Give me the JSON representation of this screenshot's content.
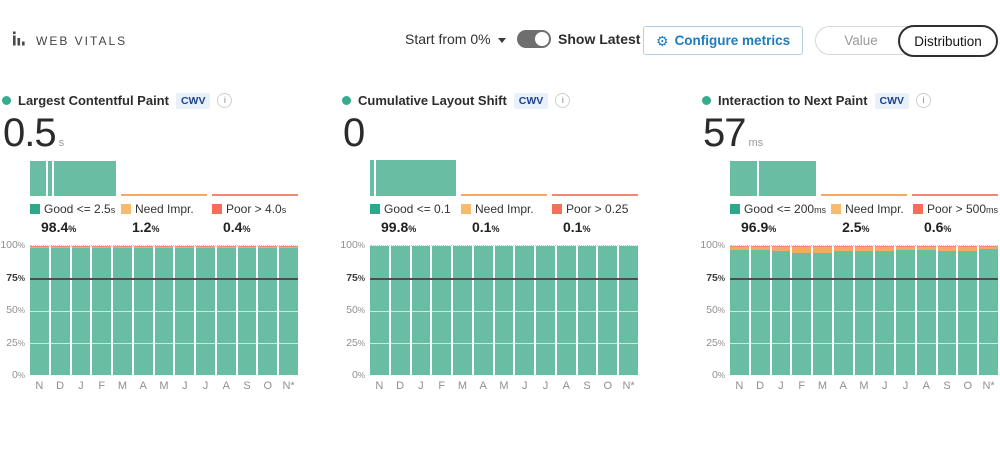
{
  "percent_sign": "%",
  "header": {
    "brand": "WEB VITALS",
    "start_from_label": "Start from 0%",
    "show_latest_label": "Show Latest",
    "configure_label": "Configure metrics",
    "view_toggle": {
      "options": [
        "Value",
        "Distribution"
      ],
      "selected": "Distribution"
    }
  },
  "colors": {
    "good": "#68bda2",
    "good_legend": "#2ea78b",
    "need": "#f4aa67",
    "need_legend": "#f6bb6f",
    "poor": "#ee8a72",
    "poor_legend": "#f2705a",
    "accent_blue": "#1c7cc0",
    "badge_bg": "#e8f1fa",
    "badge_text": "#20418e",
    "threshold_line": "#4d4d4d",
    "title_dot": "#35ab8f"
  },
  "months": [
    "N",
    "D",
    "J",
    "F",
    "M",
    "A",
    "M",
    "J",
    "J",
    "A",
    "S",
    "O",
    "N*"
  ],
  "y_ticks": [
    100,
    75,
    50,
    25,
    0
  ],
  "cards": [
    {
      "title": "Largest Contentful Paint",
      "badge": "CWV",
      "info": "i",
      "value": "0.5",
      "unit": "s",
      "legend": [
        {
          "label": "Good <= 2.5",
          "unit": "s",
          "value": "98.4"
        },
        {
          "label": "Need Impr.",
          "unit": "",
          "value": "1.2"
        },
        {
          "label": "Poor > 4.0",
          "unit": "s",
          "value": "0.4"
        }
      ],
      "minibar_dividers": [
        19,
        26
      ],
      "chart_data": {
        "type": "stacked-bar",
        "x": [
          "N",
          "D",
          "J",
          "F",
          "M",
          "A",
          "M",
          "J",
          "J",
          "A",
          "S",
          "O",
          "N*"
        ],
        "series": [
          {
            "name": "Good",
            "values": [
              98.4,
              98.4,
              98.4,
              98.4,
              98.4,
              98.4,
              98.4,
              98.4,
              98.4,
              98.4,
              98.4,
              98.4,
              98.4
            ]
          },
          {
            "name": "Need Improvement",
            "values": [
              1.2,
              1.2,
              1.2,
              1.2,
              1.2,
              1.2,
              1.2,
              1.2,
              1.2,
              1.2,
              1.2,
              1.2,
              1.2
            ]
          },
          {
            "name": "Poor",
            "values": [
              0.4,
              0.4,
              0.4,
              0.4,
              0.4,
              0.4,
              0.4,
              0.4,
              0.4,
              0.4,
              0.4,
              0.4,
              0.4
            ]
          }
        ],
        "ylim": [
          0,
          100
        ],
        "threshold": 75
      }
    },
    {
      "title": "Cumulative Layout Shift",
      "badge": "CWV",
      "info": "i",
      "value": "0",
      "unit": "",
      "legend": [
        {
          "label": "Good <= 0.1",
          "unit": "",
          "value": "99.8"
        },
        {
          "label": "Need Impr.",
          "unit": "",
          "value": "0.1"
        },
        {
          "label": "Poor > 0.25",
          "unit": "",
          "value": "0.1"
        }
      ],
      "minibar_dividers": [
        5
      ],
      "chart_data": {
        "type": "stacked-bar",
        "x": [
          "N",
          "D",
          "J",
          "F",
          "M",
          "A",
          "M",
          "J",
          "J",
          "A",
          "S",
          "O",
          "N*"
        ],
        "series": [
          {
            "name": "Good",
            "values": [
              99.8,
              99.8,
              99.8,
              99.8,
              99.8,
              99.8,
              99.8,
              99.8,
              99.8,
              99.8,
              99.8,
              99.8,
              99.8
            ]
          },
          {
            "name": "Need Improvement",
            "values": [
              0.1,
              0.1,
              0.1,
              0.1,
              0.1,
              0.1,
              0.1,
              0.1,
              0.1,
              0.1,
              0.1,
              0.1,
              0.1
            ]
          },
          {
            "name": "Poor",
            "values": [
              0.1,
              0.1,
              0.1,
              0.1,
              0.1,
              0.1,
              0.1,
              0.1,
              0.1,
              0.1,
              0.1,
              0.1,
              0.1
            ]
          }
        ],
        "ylim": [
          0,
          100
        ],
        "threshold": 75
      }
    },
    {
      "title": "Interaction to Next Paint",
      "badge": "CWV",
      "info": "i",
      "value": "57",
      "unit": "ms",
      "legend": [
        {
          "label": "Good <= 200",
          "unit": "ms",
          "value": "96.9"
        },
        {
          "label": "Need Impr.",
          "unit": "",
          "value": "2.5"
        },
        {
          "label": "Poor > 500",
          "unit": "ms",
          "value": "0.6"
        }
      ],
      "minibar_dividers": [
        31
      ],
      "chart_data": {
        "type": "stacked-bar",
        "x": [
          "N",
          "D",
          "J",
          "F",
          "M",
          "A",
          "M",
          "J",
          "J",
          "A",
          "S",
          "O",
          "N*"
        ],
        "series": [
          {
            "name": "Good",
            "values": [
              96.9,
              96.8,
              96.0,
              94.6,
              94.8,
              96.3,
              96.0,
              96.3,
              96.7,
              96.9,
              96.3,
              96.2,
              97.4
            ]
          },
          {
            "name": "Need Improvement",
            "values": [
              2.5,
              2.6,
              3.4,
              4.8,
              4.6,
              3.1,
              3.4,
              3.1,
              2.7,
              2.5,
              3.1,
              3.2,
              2.0
            ]
          },
          {
            "name": "Poor",
            "values": [
              0.6,
              0.6,
              0.6,
              0.6,
              0.6,
              0.6,
              0.6,
              0.6,
              0.6,
              0.6,
              0.6,
              0.6,
              0.6
            ]
          }
        ],
        "ylim": [
          0,
          100
        ],
        "threshold": 75
      }
    }
  ]
}
